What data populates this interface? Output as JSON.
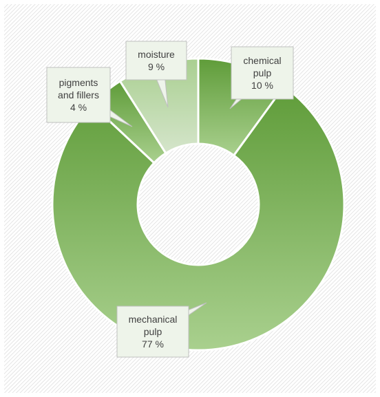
{
  "chart_data": {
    "type": "pie",
    "style": "doughnut",
    "title": "",
    "slices": [
      {
        "label_lines": [
          "chemical",
          "pulp"
        ],
        "value": 10,
        "value_label": "10 %",
        "color_top": "#6fa84a",
        "color_bottom": "#a6cf8c"
      },
      {
        "label_lines": [
          "mechanical",
          "pulp"
        ],
        "value": 77,
        "value_label": "77 %",
        "color_top": "#6fa84a",
        "color_bottom": "#a6cf8c"
      },
      {
        "label_lines": [
          "pigments",
          "and fillers"
        ],
        "value": 4,
        "value_label": "4 %",
        "color_top": "#6fa84a",
        "color_bottom": "#a6cf8c"
      },
      {
        "label_lines": [
          "moisture"
        ],
        "value": 9,
        "value_label": "9 %",
        "color_top": "#b8d4a8",
        "color_bottom": "#d9e6d2"
      }
    ],
    "legend": "none",
    "data_labels": "callouts",
    "background": "hatched",
    "colors": {
      "label_fill": "#eef4ea",
      "label_border": "#bfbfbf",
      "label_text": "#404040",
      "separator": "#ffffff"
    }
  }
}
